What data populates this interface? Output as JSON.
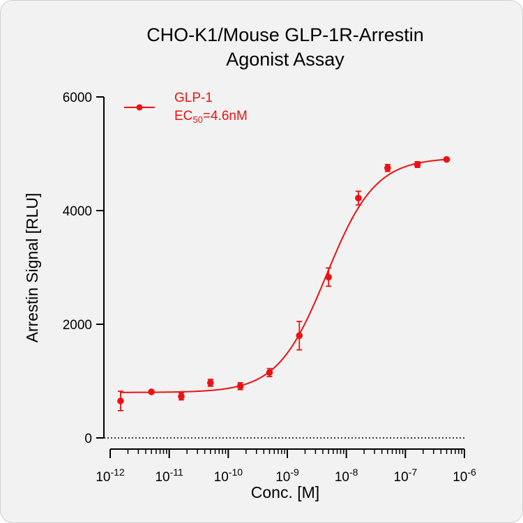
{
  "chart_data": {
    "type": "scatter",
    "title_lines": [
      "CHO-K1/Mouse GLP-1R-Arrestin",
      "Agonist Assay"
    ],
    "xlabel": "Conc. [M]",
    "ylabel": "Arrestin Signal [RLU]",
    "x_scale": "log",
    "xlim": [
      1e-12,
      1e-06
    ],
    "ylim": [
      0,
      6000
    ],
    "x_tick_base": "10",
    "x_ticks": [
      {
        "value": 1e-12,
        "exp": "-12"
      },
      {
        "value": 1e-11,
        "exp": "-11"
      },
      {
        "value": 1e-10,
        "exp": "-10"
      },
      {
        "value": 1e-09,
        "exp": "-9"
      },
      {
        "value": 1e-08,
        "exp": "-8"
      },
      {
        "value": 1e-07,
        "exp": "-7"
      },
      {
        "value": 1e-06,
        "exp": "-6"
      }
    ],
    "y_ticks": [
      {
        "value": 0,
        "label": "0"
      },
      {
        "value": 2000,
        "label": "2000"
      },
      {
        "value": 4000,
        "label": "4000"
      },
      {
        "value": 6000,
        "label": "6000"
      }
    ],
    "series": [
      {
        "name": "GLP-1",
        "color": "#ee1111",
        "x": [
          1.5e-12,
          5e-12,
          1.6e-11,
          5e-11,
          1.6e-10,
          5e-10,
          1.6e-09,
          5e-09,
          1.6e-08,
          5e-08,
          1.6e-07,
          5e-07
        ],
        "y": [
          650,
          810,
          730,
          970,
          910,
          1150,
          1800,
          2830,
          4220,
          4750,
          4810,
          4900
        ],
        "err": [
          170,
          0,
          60,
          60,
          60,
          70,
          250,
          160,
          120,
          60,
          50,
          0
        ],
        "fit": {
          "bottom": 800,
          "top": 4930,
          "ec50": 4.6e-09,
          "hill": 1.05
        }
      }
    ],
    "legend": {
      "position": "top-left",
      "label": "GLP-1",
      "ec_prefix": "EC",
      "ec_sub": "50",
      "ec_suffix": "=4.6nM"
    },
    "baseline": "dotted line at y = 0"
  }
}
